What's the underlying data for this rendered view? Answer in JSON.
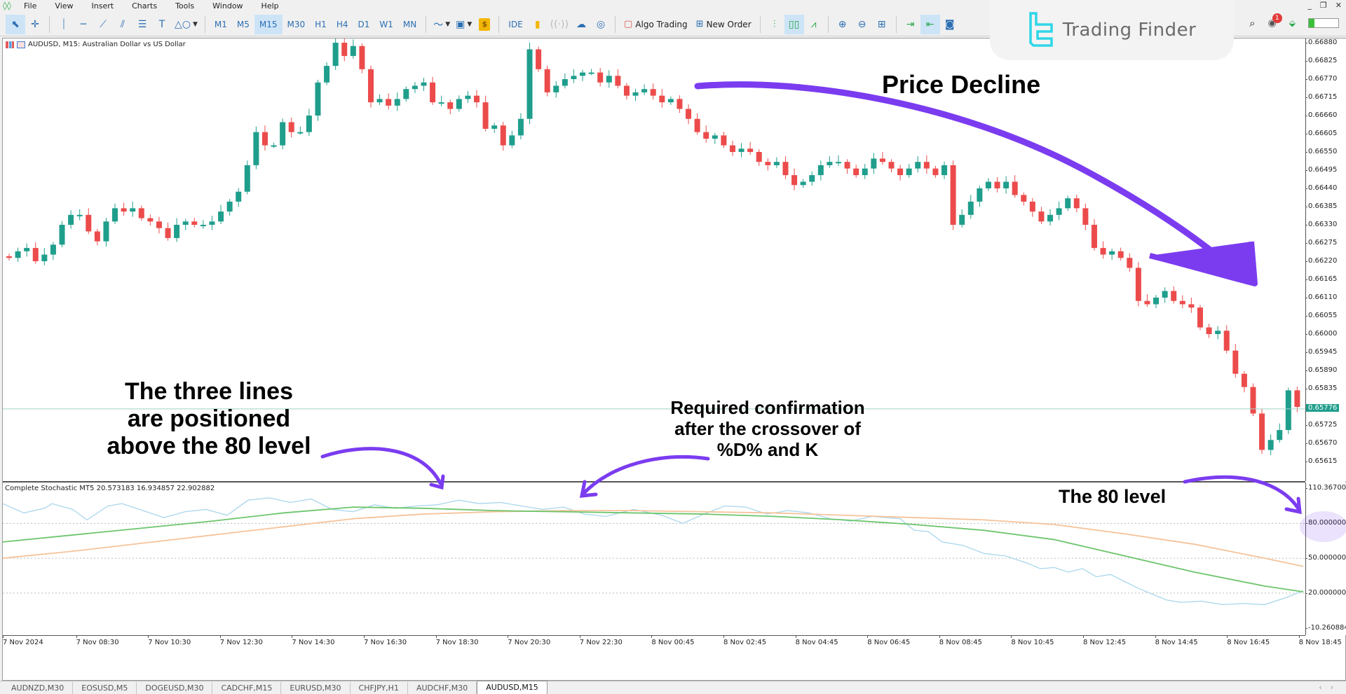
{
  "menubar": {
    "items": [
      "File",
      "View",
      "Insert",
      "Charts",
      "Tools",
      "Window",
      "Help"
    ],
    "window_controls": [
      "_",
      "❐",
      "✕"
    ]
  },
  "toolbar": {
    "timeframes": [
      "M1",
      "M5",
      "M15",
      "M30",
      "H1",
      "H4",
      "D1",
      "W1",
      "MN"
    ],
    "active_timeframe": "M15",
    "ide_label": "IDE",
    "algo_trading_label": "Algo Trading",
    "new_order_label": "New Order",
    "gold_label": "$"
  },
  "branding": {
    "logo_text": "Trading Finder",
    "logo_color": "#2fd6e8"
  },
  "right_tools": {
    "notification_count": "1"
  },
  "chart": {
    "title": "AUDUSD, M15:  Australian Dollar vs US Dollar",
    "bull_color": "#1f9e8c",
    "bear_color": "#ec4b4b",
    "current_price": "0.65776",
    "price_axis": [
      "0.66880",
      "0.66825",
      "0.66770",
      "0.66715",
      "0.66660",
      "0.66605",
      "0.66550",
      "0.66495",
      "0.66440",
      "0.66385",
      "0.66330",
      "0.66275",
      "0.66220",
      "0.66165",
      "0.66110",
      "0.66055",
      "0.66000",
      "0.65945",
      "0.65890",
      "0.65835",
      "0.65725",
      "0.65670",
      "0.65615"
    ],
    "time_axis": [
      "7 Nov 2024",
      "7 Nov 08:30",
      "7 Nov 10:30",
      "7 Nov 12:30",
      "7 Nov 14:30",
      "7 Nov 16:30",
      "7 Nov 18:30",
      "7 Nov 20:30",
      "7 Nov 22:30",
      "8 Nov 00:45",
      "8 Nov 02:45",
      "8 Nov 04:45",
      "8 Nov 06:45",
      "8 Nov 08:45",
      "8 Nov 10:45",
      "8 Nov 12:45",
      "8 Nov 14:45",
      "8 Nov 16:45",
      "8 Nov 18:45"
    ]
  },
  "indicator": {
    "title": "Complete Stochastic MT5 20.573183 16.934857 22.902882",
    "axis": [
      "110.367004",
      "80.000000",
      "50.000000",
      "20.000000",
      "-10.260884"
    ],
    "k_color": "#a9d6ec",
    "d_color": "#6cc56c",
    "slow_color": "#f5c39a"
  },
  "annotations": {
    "price_decline": "Price Decline",
    "three_lines": [
      "The three lines",
      "are positioned",
      "above the 80 level"
    ],
    "confirmation": [
      "Required confirmation",
      "after the crossover of",
      "%D% and K"
    ],
    "level_80": "The 80 level",
    "arrow_color": "#7b3cf0"
  },
  "tabs": {
    "items": [
      "AUDNZD,M30",
      "EOSUSD,M5",
      "DOGEUSD,M30",
      "CADCHF,M15",
      "EURUSD,M30",
      "CHFJPY,H1",
      "AUDCHF,M30",
      "AUDUSD,M15"
    ],
    "active": "AUDUSD,M15"
  }
}
